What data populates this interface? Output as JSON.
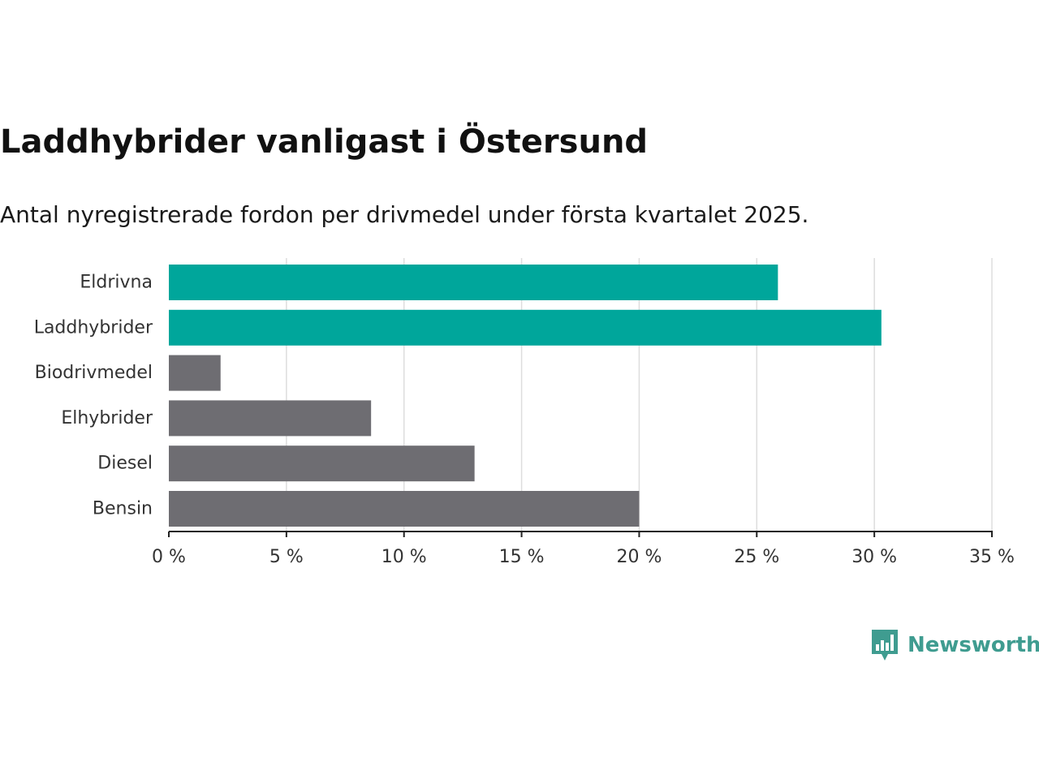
{
  "header": {
    "title": "Laddhybrider vanligast i Östersund",
    "subtitle": "Antal nyregistrerade fordon per drivmedel under första kvartalet 2025."
  },
  "brand": {
    "name": "Newsworthy",
    "color": "#3f9c90"
  },
  "chart_data": {
    "type": "bar",
    "orientation": "horizontal",
    "title": "Laddhybrider vanligast i Östersund",
    "subtitle": "Antal nyregistrerade fordon per drivmedel under första kvartalet 2025.",
    "categories": [
      "Eldrivna",
      "Laddhybrider",
      "Biodrivmedel",
      "Elhybrider",
      "Diesel",
      "Bensin"
    ],
    "values": [
      25.9,
      30.3,
      2.2,
      8.6,
      13.0,
      20.0
    ],
    "colors": [
      "#00a69b",
      "#00a69b",
      "#6e6d72",
      "#6e6d72",
      "#6e6d72",
      "#6e6d72"
    ],
    "highlight_color": "#00a69b",
    "default_color": "#6e6d72",
    "xlim": [
      0,
      35
    ],
    "xticks": [
      0,
      5,
      10,
      15,
      20,
      25,
      30,
      35
    ],
    "xtick_labels": [
      "0 %",
      "5 %",
      "10 %",
      "15 %",
      "20 %",
      "25 %",
      "30 %",
      "35 %"
    ],
    "xlabel": "",
    "ylabel": "",
    "grid": true,
    "legend": "none"
  }
}
